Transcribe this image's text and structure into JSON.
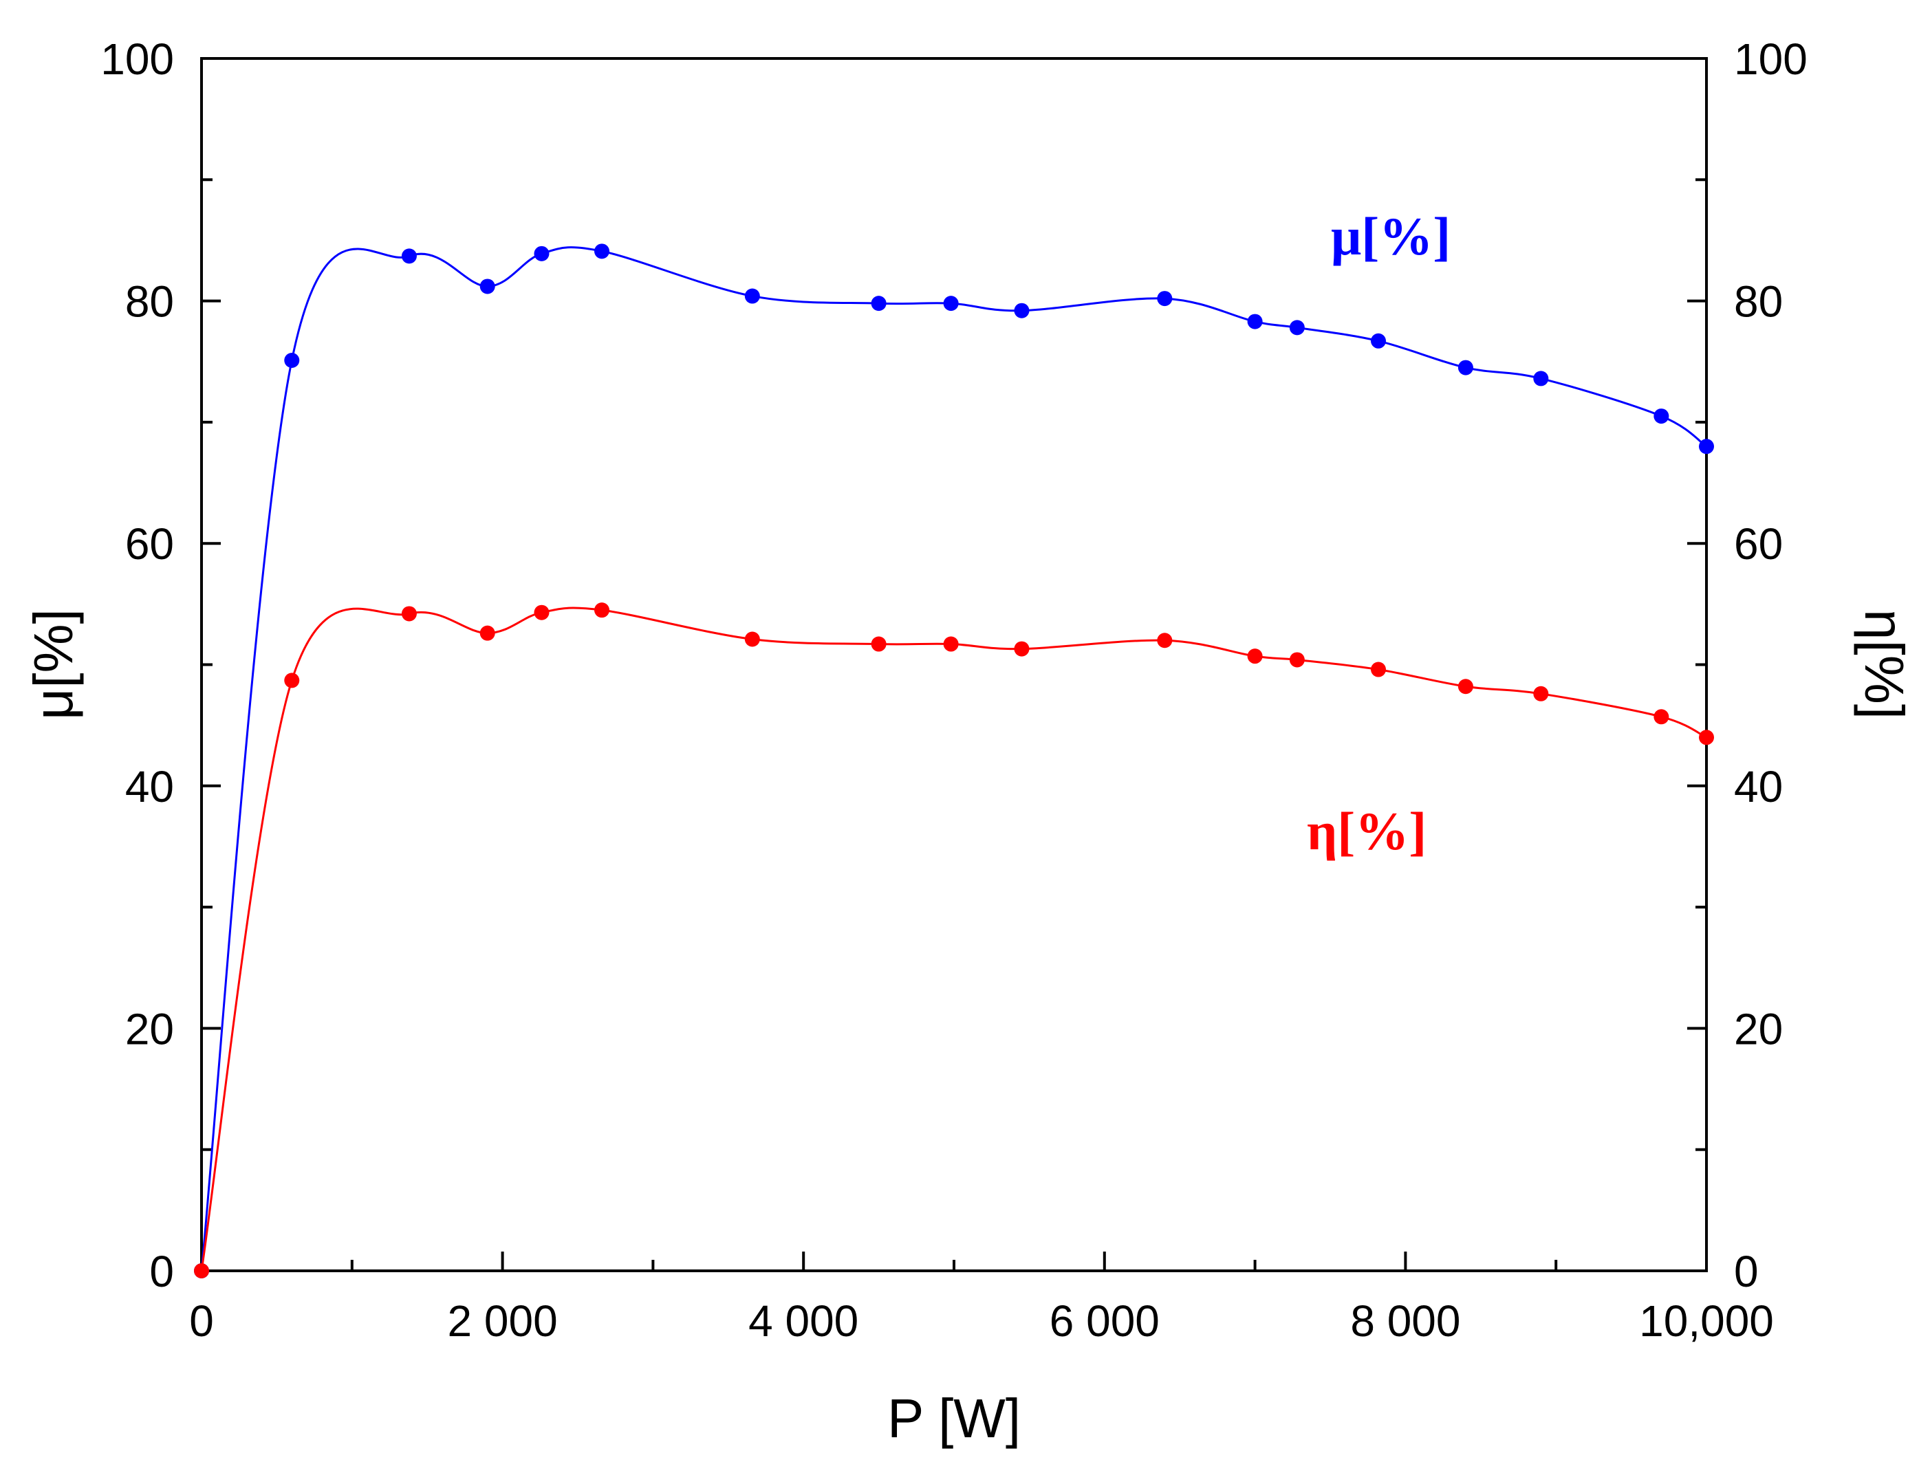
{
  "chart_data": {
    "type": "line",
    "title": "",
    "xlabel": "P [W]",
    "ylabel_left": "μ[%]",
    "ylabel_right": "η[%]",
    "xlim": [
      0,
      10000
    ],
    "ylim": [
      0,
      100
    ],
    "x_ticks": [
      0,
      2000,
      4000,
      6000,
      8000,
      10000
    ],
    "x_tick_labels": [
      "0",
      "2 000",
      "4 000",
      "6 000",
      "8 000",
      "10,000"
    ],
    "y_ticks": [
      0,
      20,
      40,
      60,
      80,
      100
    ],
    "y_tick_labels": [
      "0",
      "20",
      "40",
      "60",
      "80",
      "100"
    ],
    "grid": false,
    "series": [
      {
        "name": "μ[%]",
        "color": "#0000ff",
        "axis": "left",
        "x": [
          0,
          600,
          1380,
          1900,
          2260,
          2660,
          3660,
          4500,
          4980,
          5450,
          6400,
          7000,
          7280,
          7820,
          8400,
          8900,
          9700,
          10000
        ],
        "y": [
          0,
          75.1,
          83.7,
          81.2,
          83.9,
          84.1,
          80.4,
          79.8,
          79.8,
          79.2,
          80.2,
          78.3,
          77.8,
          76.7,
          74.5,
          73.6,
          70.5,
          68.0
        ]
      },
      {
        "name": "η[%]",
        "color": "#ff0000",
        "axis": "right",
        "x": [
          0,
          600,
          1380,
          1900,
          2260,
          2660,
          3660,
          4500,
          4980,
          5450,
          6400,
          7000,
          7280,
          7820,
          8400,
          8900,
          9700,
          10000
        ],
        "y": [
          0,
          48.7,
          54.2,
          52.6,
          54.3,
          54.5,
          52.1,
          51.7,
          51.7,
          51.3,
          52.0,
          50.7,
          50.4,
          49.6,
          48.2,
          47.6,
          45.7,
          44.0
        ]
      }
    ],
    "annotations": [
      {
        "text": "μ[%]",
        "color": "#0000ff"
      },
      {
        "text": "η[%]",
        "color": "#ff0000"
      }
    ]
  }
}
